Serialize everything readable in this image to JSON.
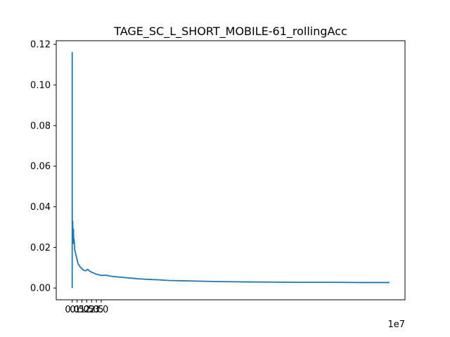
{
  "chart_data": {
    "type": "line",
    "title": "TAGE_SC_L_SHORT_MOBILE-61_rollingAcc",
    "xlabel": "",
    "ylabel": "",
    "x_offset_label": "1e7",
    "xlim": [
      -1.65,
      34.4
    ],
    "ylim": [
      -0.0058,
      0.1218
    ],
    "x_ticks": [
      0.0,
      0.5,
      1.0,
      1.5,
      2.0,
      2.5,
      3.0
    ],
    "x_tick_labels": [
      "0.0",
      "0.5",
      "1.0",
      "1.5",
      "2.0",
      "2.5",
      "3.0"
    ],
    "y_ticks": [
      0.0,
      0.02,
      0.04,
      0.06,
      0.08,
      0.1,
      0.12
    ],
    "y_tick_labels": [
      "0.00",
      "0.02",
      "0.04",
      "0.06",
      "0.08",
      "0.10",
      "0.12"
    ],
    "grid": false,
    "legend": "none",
    "series": [
      {
        "color": "#1f77b4",
        "x": [
          0,
          0.0001,
          0.0003,
          0.0006,
          0.001,
          0.002,
          0.004,
          0.006,
          0.008,
          0.011,
          0.014,
          0.017,
          0.02,
          0.023,
          0.026,
          0.03,
          0.035,
          0.04,
          0.05,
          0.07,
          0.1,
          0.13,
          0.16,
          0.2,
          0.25,
          0.3,
          0.4,
          0.5,
          0.6,
          0.8,
          1.0,
          1.2,
          1.4,
          1.6,
          1.8,
          2.0,
          2.5,
          3.0,
          3.5,
          4.0,
          5.0,
          6.0,
          7.0,
          8.0,
          9.0,
          10.0,
          12.0,
          15.0,
          18.0,
          21.0,
          24.0,
          27.0,
          30.0,
          32.8
        ],
        "y": [
          0.0,
          0.116,
          0.08,
          0.116,
          0.06,
          0.045,
          0.04,
          0.036,
          0.033,
          0.03,
          0.032,
          0.027,
          0.031,
          0.025,
          0.029,
          0.023,
          0.031,
          0.025,
          0.033,
          0.026,
          0.022,
          0.029,
          0.023,
          0.024,
          0.019,
          0.018,
          0.016,
          0.014,
          0.012,
          0.0105,
          0.0095,
          0.0087,
          0.0085,
          0.0092,
          0.0083,
          0.0078,
          0.0068,
          0.0062,
          0.0063,
          0.0058,
          0.0053,
          0.0049,
          0.0045,
          0.0042,
          0.004,
          0.0037,
          0.0035,
          0.0032,
          0.003,
          0.0029,
          0.0028,
          0.0028,
          0.0027,
          0.0027
        ]
      }
    ]
  }
}
